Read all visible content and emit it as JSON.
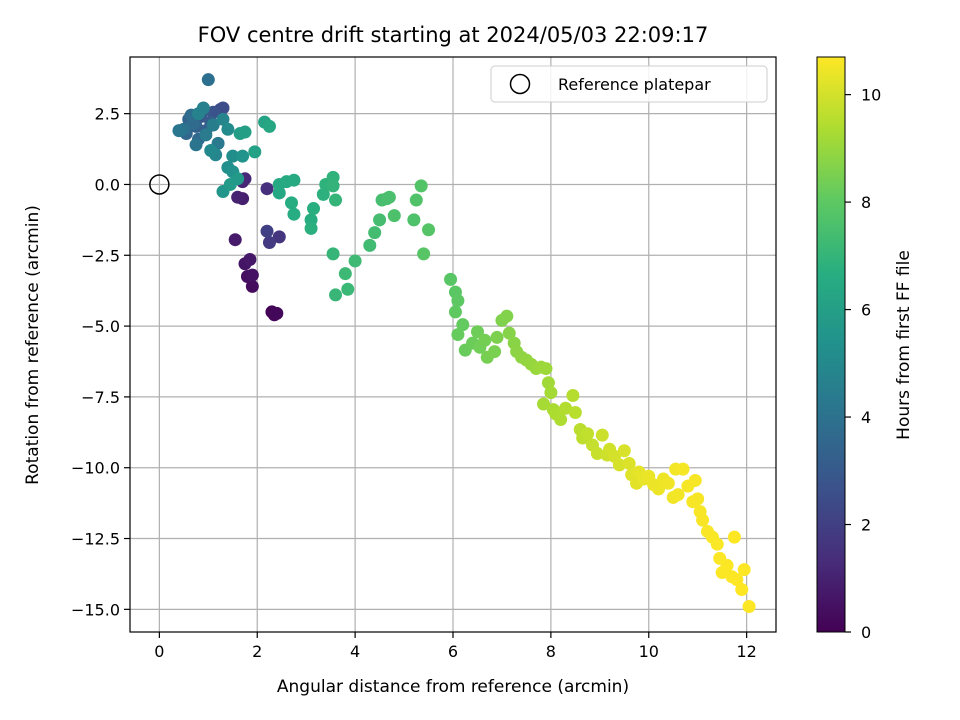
{
  "chart_data": {
    "type": "scatter",
    "title": "FOV centre drift starting at 2024/05/03 22:09:17",
    "xlabel": "Angular distance from reference (arcmin)",
    "ylabel": "Rotation from reference (arcmin)",
    "xlim": [
      -0.6,
      12.6
    ],
    "ylim": [
      -15.8,
      4.5
    ],
    "xticks": [
      0,
      2,
      4,
      6,
      8,
      10,
      12
    ],
    "yticks": [
      2.5,
      0.0,
      -2.5,
      -5.0,
      -7.5,
      -10.0,
      -12.5,
      -15.0
    ],
    "xtick_labels": [
      "0",
      "2",
      "4",
      "6",
      "8",
      "10",
      "12"
    ],
    "ytick_labels": [
      "2.5",
      "0.0",
      "−2.5",
      "−5.0",
      "−7.5",
      "−10.0",
      "−12.5",
      "−15.0"
    ],
    "grid": true,
    "legend": {
      "entries": [
        "Reference platepar"
      ],
      "placement": "top-right"
    },
    "reference_point": {
      "x": 0.0,
      "y": 0.0
    },
    "colorbar": {
      "label": "Hours from first FF file",
      "range": [
        0,
        10.7
      ],
      "ticks": [
        0,
        2,
        4,
        6,
        8,
        10
      ],
      "tick_labels": [
        "0",
        "2",
        "4",
        "6",
        "8",
        "10"
      ],
      "colormap": "viridis"
    },
    "points": [
      [
        2.3,
        -4.5,
        0.1
      ],
      [
        2.35,
        -4.6,
        0.15
      ],
      [
        2.4,
        -4.55,
        0.2
      ],
      [
        1.9,
        -3.6,
        0.3
      ],
      [
        1.8,
        -3.25,
        0.4
      ],
      [
        1.9,
        -3.2,
        0.5
      ],
      [
        1.75,
        -2.8,
        0.6
      ],
      [
        1.85,
        -2.65,
        0.7
      ],
      [
        1.55,
        -1.95,
        0.8
      ],
      [
        1.7,
        -0.5,
        0.9
      ],
      [
        1.6,
        -0.45,
        1.0
      ],
      [
        1.7,
        0.1,
        1.1
      ],
      [
        1.75,
        0.2,
        1.2
      ],
      [
        2.2,
        -0.15,
        1.4
      ],
      [
        2.45,
        -1.85,
        1.6
      ],
      [
        2.25,
        -2.05,
        1.8
      ],
      [
        2.2,
        -1.65,
        2.0
      ],
      [
        1.25,
        2.65,
        2.3
      ],
      [
        1.3,
        2.7,
        2.5
      ],
      [
        1.1,
        2.55,
        2.7
      ],
      [
        0.85,
        2.4,
        2.9
      ],
      [
        0.9,
        2.6,
        3.0
      ],
      [
        1.05,
        2.2,
        3.1
      ],
      [
        0.95,
        1.9,
        3.2
      ],
      [
        0.75,
        2.05,
        3.3
      ],
      [
        0.6,
        2.3,
        3.4
      ],
      [
        0.55,
        1.8,
        3.5
      ],
      [
        0.8,
        1.6,
        3.6
      ],
      [
        0.7,
        2.15,
        3.7
      ],
      [
        0.65,
        2.45,
        3.8
      ],
      [
        1.0,
        3.7,
        3.9
      ],
      [
        0.5,
        1.95,
        4.0
      ],
      [
        0.75,
        1.4,
        4.1
      ],
      [
        0.4,
        1.9,
        4.2
      ],
      [
        1.2,
        1.45,
        4.3
      ],
      [
        0.95,
        1.75,
        4.4
      ],
      [
        1.1,
        2.1,
        4.5
      ],
      [
        0.9,
        2.7,
        4.6
      ],
      [
        0.8,
        2.5,
        4.7
      ],
      [
        1.3,
        2.3,
        4.8
      ],
      [
        1.15,
        1.05,
        4.9
      ],
      [
        1.05,
        1.2,
        5.0
      ],
      [
        1.4,
        1.95,
        5.1
      ],
      [
        1.5,
        1.0,
        5.2
      ],
      [
        1.4,
        0.6,
        5.3
      ],
      [
        1.5,
        0.45,
        5.4
      ],
      [
        1.7,
        1.0,
        5.5
      ],
      [
        1.3,
        -0.25,
        5.6
      ],
      [
        1.6,
        0.2,
        5.7
      ],
      [
        1.45,
        0.0,
        5.8
      ],
      [
        1.65,
        1.8,
        5.9
      ],
      [
        1.75,
        1.85,
        6.0
      ],
      [
        1.95,
        1.15,
        6.1
      ],
      [
        2.15,
        2.2,
        6.2
      ],
      [
        2.25,
        2.05,
        6.3
      ],
      [
        2.45,
        -0.3,
        6.35
      ],
      [
        2.45,
        0.0,
        6.4
      ],
      [
        2.6,
        0.1,
        6.45
      ],
      [
        2.75,
        0.15,
        6.5
      ],
      [
        2.7,
        -0.65,
        6.55
      ],
      [
        2.75,
        -1.05,
        6.6
      ],
      [
        3.1,
        -1.25,
        6.65
      ],
      [
        3.15,
        -0.85,
        6.7
      ],
      [
        3.1,
        -1.55,
        6.75
      ],
      [
        3.35,
        -0.35,
        6.8
      ],
      [
        3.4,
        0.0,
        6.85
      ],
      [
        3.55,
        0.25,
        6.9
      ],
      [
        3.55,
        -0.05,
        6.95
      ],
      [
        3.6,
        -0.55,
        7.0
      ],
      [
        3.55,
        -2.45,
        7.05
      ],
      [
        3.6,
        -3.9,
        7.1
      ],
      [
        3.85,
        -3.7,
        7.15
      ],
      [
        3.8,
        -3.15,
        7.2
      ],
      [
        4.0,
        -2.7,
        7.25
      ],
      [
        4.3,
        -2.15,
        7.3
      ],
      [
        4.4,
        -1.7,
        7.35
      ],
      [
        4.5,
        -1.25,
        7.4
      ],
      [
        4.55,
        -0.55,
        7.45
      ],
      [
        4.65,
        -0.5,
        7.5
      ],
      [
        4.7,
        -0.45,
        7.55
      ],
      [
        4.8,
        -1.1,
        7.6
      ],
      [
        5.2,
        -1.25,
        7.65
      ],
      [
        5.25,
        -0.55,
        7.7
      ],
      [
        5.35,
        -0.05,
        7.75
      ],
      [
        5.5,
        -1.6,
        7.8
      ],
      [
        5.4,
        -2.45,
        7.85
      ],
      [
        5.95,
        -3.35,
        7.9
      ],
      [
        6.05,
        -3.8,
        7.95
      ],
      [
        6.1,
        -4.1,
        8.0
      ],
      [
        6.05,
        -4.5,
        8.05
      ],
      [
        6.2,
        -4.95,
        8.1
      ],
      [
        6.1,
        -5.3,
        8.15
      ],
      [
        6.25,
        -5.85,
        8.2
      ],
      [
        6.4,
        -5.6,
        8.25
      ],
      [
        6.5,
        -5.2,
        8.3
      ],
      [
        6.55,
        -5.75,
        8.35
      ],
      [
        6.65,
        -5.5,
        8.4
      ],
      [
        6.7,
        -6.1,
        8.45
      ],
      [
        6.85,
        -5.9,
        8.5
      ],
      [
        6.9,
        -5.4,
        8.55
      ],
      [
        7.0,
        -4.8,
        8.6
      ],
      [
        7.1,
        -4.65,
        8.65
      ],
      [
        7.15,
        -5.25,
        8.7
      ],
      [
        7.25,
        -5.6,
        8.75
      ],
      [
        7.3,
        -5.9,
        8.8
      ],
      [
        7.4,
        -6.1,
        8.85
      ],
      [
        7.5,
        -6.2,
        8.9
      ],
      [
        7.6,
        -6.35,
        8.95
      ],
      [
        7.7,
        -6.5,
        9.0
      ],
      [
        7.8,
        -6.45,
        9.05
      ],
      [
        7.9,
        -6.5,
        9.1
      ],
      [
        7.95,
        -7.0,
        9.15
      ],
      [
        8.0,
        -7.35,
        9.2
      ],
      [
        7.85,
        -7.75,
        9.25
      ],
      [
        8.05,
        -7.95,
        9.3
      ],
      [
        8.1,
        -8.1,
        9.35
      ],
      [
        8.2,
        -8.3,
        9.4
      ],
      [
        8.3,
        -7.9,
        9.45
      ],
      [
        8.45,
        -7.45,
        9.5
      ],
      [
        8.5,
        -8.05,
        9.55
      ],
      [
        8.6,
        -8.65,
        9.6
      ],
      [
        8.65,
        -8.95,
        9.65
      ],
      [
        8.75,
        -8.8,
        9.7
      ],
      [
        8.85,
        -9.2,
        9.75
      ],
      [
        8.95,
        -9.5,
        9.8
      ],
      [
        9.05,
        -8.85,
        9.85
      ],
      [
        9.15,
        -9.55,
        9.9
      ],
      [
        9.2,
        -9.35,
        9.95
      ],
      [
        9.3,
        -9.6,
        10.0
      ],
      [
        9.4,
        -9.9,
        10.05
      ],
      [
        9.5,
        -9.4,
        10.1
      ],
      [
        9.6,
        -9.85,
        10.15
      ],
      [
        9.65,
        -10.25,
        10.2
      ],
      [
        9.75,
        -10.55,
        10.25
      ],
      [
        9.8,
        -10.15,
        10.3
      ],
      [
        9.9,
        -10.4,
        10.35
      ],
      [
        10.0,
        -10.3,
        10.4
      ],
      [
        10.1,
        -10.6,
        10.42
      ],
      [
        10.2,
        -10.75,
        10.44
      ],
      [
        10.3,
        -10.4,
        10.46
      ],
      [
        10.4,
        -10.55,
        10.48
      ],
      [
        10.5,
        -11.05,
        10.5
      ],
      [
        10.55,
        -10.05,
        10.52
      ],
      [
        10.6,
        -10.95,
        10.54
      ],
      [
        10.7,
        -10.05,
        10.56
      ],
      [
        10.8,
        -10.65,
        10.57
      ],
      [
        10.9,
        -11.2,
        10.58
      ],
      [
        10.95,
        -10.45,
        10.59
      ],
      [
        11.0,
        -11.1,
        10.6
      ],
      [
        11.05,
        -11.55,
        10.6
      ],
      [
        11.1,
        -11.85,
        10.62
      ],
      [
        11.2,
        -12.25,
        10.63
      ],
      [
        11.3,
        -12.45,
        10.64
      ],
      [
        11.4,
        -12.7,
        10.65
      ],
      [
        11.45,
        -13.2,
        10.66
      ],
      [
        11.5,
        -13.7,
        10.67
      ],
      [
        11.6,
        -13.45,
        10.68
      ],
      [
        11.7,
        -13.85,
        10.69
      ],
      [
        11.75,
        -12.45,
        10.7
      ],
      [
        11.8,
        -13.95,
        10.7
      ],
      [
        11.9,
        -14.3,
        10.7
      ],
      [
        11.95,
        -13.6,
        10.7
      ],
      [
        12.05,
        -14.9,
        10.7
      ]
    ]
  }
}
